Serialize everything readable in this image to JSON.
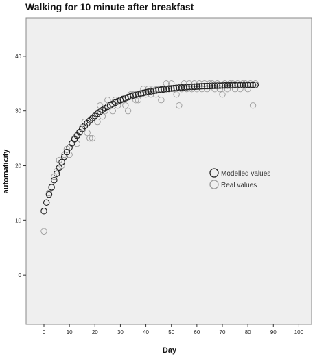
{
  "chart_data": {
    "type": "scatter",
    "title": "Walking for 10 minute after breakfast",
    "xlabel": "Day",
    "ylabel": "automaticity",
    "xlim": [
      -7,
      105
    ],
    "ylim": [
      -9,
      47
    ],
    "x_ticks": [
      0,
      10,
      20,
      30,
      40,
      50,
      60,
      70,
      80,
      90,
      100
    ],
    "y_ticks": [
      0,
      10,
      20,
      30,
      40
    ],
    "grid": false,
    "legend_position": "right-middle",
    "background_color": "#efefef",
    "model": {
      "type": "exponential",
      "asymptote": 34.8,
      "start": 11.7,
      "rate": 0.07
    },
    "series": [
      {
        "name": "Modelled values",
        "marker": "open-circle",
        "color": "#222222",
        "x_range": [
          0,
          83
        ],
        "x_step": 1
      },
      {
        "name": "Real values",
        "marker": "open-circle",
        "color": "#9a9a9a",
        "points": [
          [
            0,
            8
          ],
          [
            2,
            15
          ],
          [
            3,
            16
          ],
          [
            4,
            18
          ],
          [
            5,
            19
          ],
          [
            6,
            21
          ],
          [
            7,
            20
          ],
          [
            8,
            22
          ],
          [
            9,
            23
          ],
          [
            10,
            22
          ],
          [
            11,
            24
          ],
          [
            12,
            25
          ],
          [
            13,
            24
          ],
          [
            14,
            26
          ],
          [
            15,
            27
          ],
          [
            16,
            28
          ],
          [
            17,
            26
          ],
          [
            18,
            25
          ],
          [
            19,
            25
          ],
          [
            20,
            29
          ],
          [
            21,
            28
          ],
          [
            22,
            31
          ],
          [
            23,
            29
          ],
          [
            24,
            30
          ],
          [
            25,
            32
          ],
          [
            26,
            31
          ],
          [
            27,
            30
          ],
          [
            28,
            32
          ],
          [
            29,
            31
          ],
          [
            30,
            32
          ],
          [
            31,
            32
          ],
          [
            32,
            31
          ],
          [
            33,
            30
          ],
          [
            34,
            33
          ],
          [
            35,
            33
          ],
          [
            36,
            32
          ],
          [
            37,
            32
          ],
          [
            38,
            33
          ],
          [
            39,
            34
          ],
          [
            40,
            33
          ],
          [
            41,
            34
          ],
          [
            42,
            33
          ],
          [
            43,
            34
          ],
          [
            44,
            33
          ],
          [
            45,
            34
          ],
          [
            46,
            32
          ],
          [
            47,
            34
          ],
          [
            48,
            35
          ],
          [
            49,
            34
          ],
          [
            50,
            35
          ],
          [
            51,
            34
          ],
          [
            52,
            33
          ],
          [
            53,
            31
          ],
          [
            54,
            34
          ],
          [
            55,
            35
          ],
          [
            56,
            34
          ],
          [
            57,
            35
          ],
          [
            58,
            34
          ],
          [
            59,
            35
          ],
          [
            60,
            34
          ],
          [
            61,
            35
          ],
          [
            62,
            34
          ],
          [
            63,
            35
          ],
          [
            64,
            34
          ],
          [
            65,
            35
          ],
          [
            66,
            35
          ],
          [
            67,
            34
          ],
          [
            68,
            35
          ],
          [
            69,
            34
          ],
          [
            70,
            33
          ],
          [
            71,
            35
          ],
          [
            72,
            34
          ],
          [
            73,
            35
          ],
          [
            74,
            35
          ],
          [
            75,
            34
          ],
          [
            76,
            35
          ],
          [
            77,
            34
          ],
          [
            78,
            35
          ],
          [
            79,
            35
          ],
          [
            80,
            34
          ],
          [
            81,
            35
          ],
          [
            82,
            31
          ],
          [
            83,
            35
          ]
        ]
      }
    ]
  }
}
